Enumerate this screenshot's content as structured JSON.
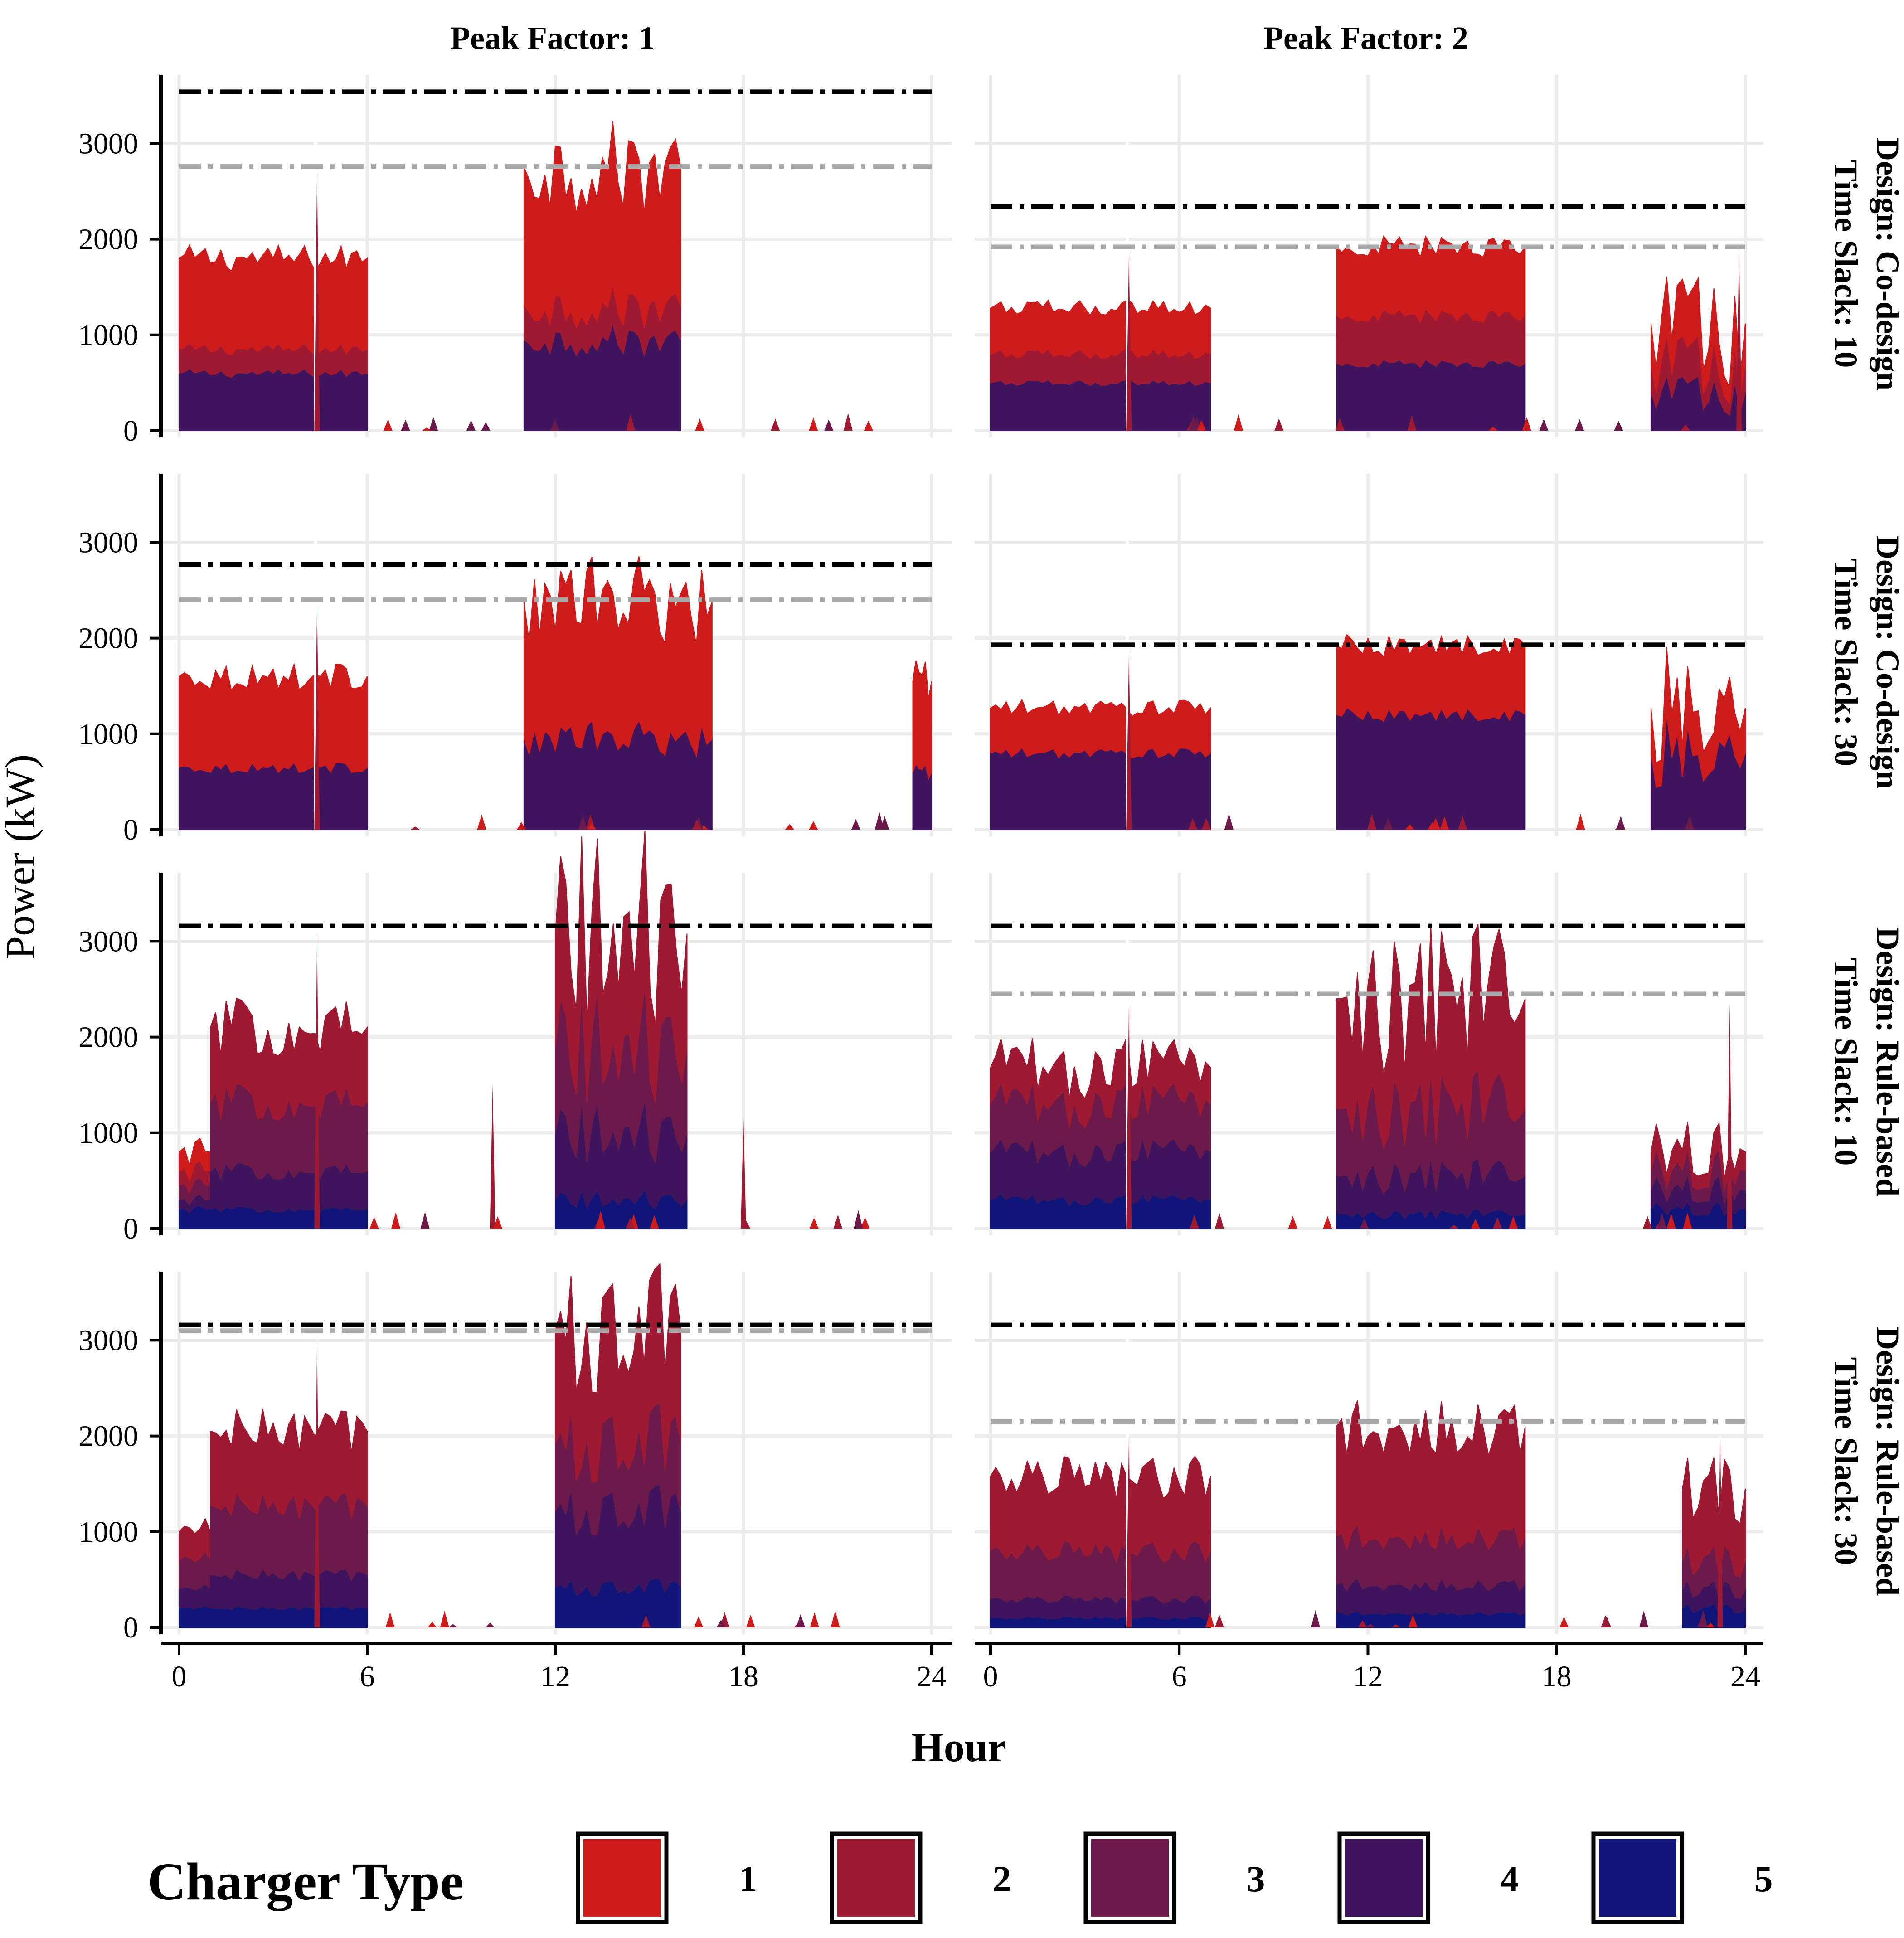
{
  "figure": {
    "ylabel": "Power (kW)",
    "xlabel": "Hour",
    "legend_title": "Charger Type"
  },
  "chart_data": {
    "type": "area",
    "stacked": true,
    "xlabel": "Hour",
    "ylabel": "Power (kW)",
    "xlim": [
      0,
      24
    ],
    "ylim": [
      0,
      3700
    ],
    "x_ticks": [
      "0",
      "6",
      "12",
      "18",
      "24"
    ],
    "y_ticks": [
      "0",
      "1000",
      "2000",
      "3000"
    ],
    "grid": true,
    "legend": {
      "title": "Charger Type",
      "position": "bottom",
      "entries": [
        {
          "label": "1",
          "color": "#CE1B1B"
        },
        {
          "label": "2",
          "color": "#9E1A32"
        },
        {
          "label": "3",
          "color": "#6C1A4A"
        },
        {
          "label": "4",
          "color": "#3E155C"
        },
        {
          "label": "5",
          "color": "#10157A"
        }
      ]
    },
    "columns": [
      "Peak Factor: 1",
      "Peak Factor: 2"
    ],
    "rows": [
      {
        "design": "Design: Co-design",
        "slack": "Time Slack: 10"
      },
      {
        "design": "Design: Co-design",
        "slack": "Time Slack: 30"
      },
      {
        "design": "Design: Rule-based",
        "slack": "Time Slack: 10"
      },
      {
        "design": "Design: Rule-based",
        "slack": "Time Slack: 30"
      }
    ],
    "panels": [
      {
        "row": 0,
        "col": 0,
        "cap_black": 3540,
        "cap_gray": 2760,
        "spikes": [
          [
            4.4,
            2750
          ]
        ],
        "blocks": [
          [
            0,
            6,
            [
              950,
              250,
              0,
              600,
              0
            ],
            80
          ],
          [
            11,
            16,
            [
              1450,
              350,
              0,
              950,
              0
            ],
            180
          ]
        ]
      },
      {
        "row": 0,
        "col": 1,
        "cap_black": 2340,
        "cap_gray": 1920,
        "spikes": [
          [
            4.4,
            1880
          ],
          [
            23.8,
            1950
          ]
        ],
        "blocks": [
          [
            0,
            7,
            [
              480,
              300,
              0,
              500,
              0
            ],
            70
          ],
          [
            11,
            17,
            [
              720,
              500,
              0,
              700,
              0
            ],
            60
          ],
          [
            21,
            24,
            [
              420,
              300,
              0,
              400,
              0
            ],
            600
          ]
        ]
      },
      {
        "row": 1,
        "col": 0,
        "cap_black": 2770,
        "cap_gray": 2400,
        "spikes": [
          [
            4.4,
            2380
          ]
        ],
        "blocks": [
          [
            0,
            6,
            [
              950,
              0,
              0,
              650,
              0
            ],
            90
          ],
          [
            11,
            17,
            [
              1430,
              0,
              0,
              950,
              0
            ],
            200
          ],
          [
            23.4,
            24,
            [
              950,
              0,
              0,
              600,
              0
            ],
            150
          ]
        ]
      },
      {
        "row": 1,
        "col": 1,
        "cap_black": 1930,
        "cap_gray": 1930,
        "spikes": [
          [
            4.4,
            1880
          ]
        ],
        "blocks": [
          [
            0,
            7,
            [
              470,
              0,
              0,
              800,
              0
            ],
            70
          ],
          [
            11,
            17,
            [
              720,
              0,
              0,
              1200,
              0
            ],
            60
          ],
          [
            21,
            24,
            [
              470,
              0,
              0,
              800,
              0
            ],
            500
          ]
        ]
      },
      {
        "row": 2,
        "col": 0,
        "cap_black": 3160,
        "cap_gray": 3160,
        "spikes": [
          [
            4.4,
            3100
          ],
          [
            10,
            1500
          ],
          [
            18,
            1150
          ]
        ],
        "blocks": [
          [
            0,
            1,
            [
              200,
              150,
              150,
              100,
              200
            ],
            200
          ],
          [
            1,
            6,
            [
              0,
              780,
              720,
              400,
              200
            ],
            150
          ],
          [
            12,
            16.2,
            [
              0,
              1180,
              900,
              700,
              300
            ],
            350
          ]
        ]
      },
      {
        "row": 2,
        "col": 1,
        "cap_black": 3160,
        "cap_gray": 2450,
        "spikes": [
          [
            4.4,
            2400
          ],
          [
            23.5,
            2350
          ]
        ],
        "blocks": [
          [
            0,
            7,
            [
              0,
              380,
              500,
              500,
              300
            ],
            200
          ],
          [
            11,
            17,
            [
              0,
              1150,
              700,
              400,
              150
            ],
            350
          ],
          [
            21,
            24,
            [
              0,
              200,
              200,
              200,
              200
            ],
            400
          ]
        ]
      },
      {
        "row": 3,
        "col": 0,
        "cap_black": 3160,
        "cap_gray": 3100,
        "spikes": [
          [
            4.4,
            3050
          ]
        ],
        "blocks": [
          [
            0,
            1,
            [
              0,
              300,
              300,
              200,
              200
            ],
            200
          ],
          [
            1,
            6,
            [
              0,
              780,
              720,
              350,
              200
            ],
            120
          ],
          [
            12,
            16,
            [
              0,
              1180,
              700,
              800,
              420
            ],
            250
          ]
        ]
      },
      {
        "row": 3,
        "col": 1,
        "cap_black": 3160,
        "cap_gray": 2150,
        "spikes": [
          [
            4.4,
            2050
          ],
          [
            23.2,
            2000
          ]
        ],
        "blocks": [
          [
            0,
            7,
            [
              0,
              780,
              500,
              200,
              100
            ],
            150
          ],
          [
            11,
            17,
            [
              0,
              1150,
              500,
              300,
              150
            ],
            150
          ],
          [
            22,
            24,
            [
              0,
              750,
              300,
              200,
              200
            ],
            300
          ]
        ]
      }
    ]
  }
}
